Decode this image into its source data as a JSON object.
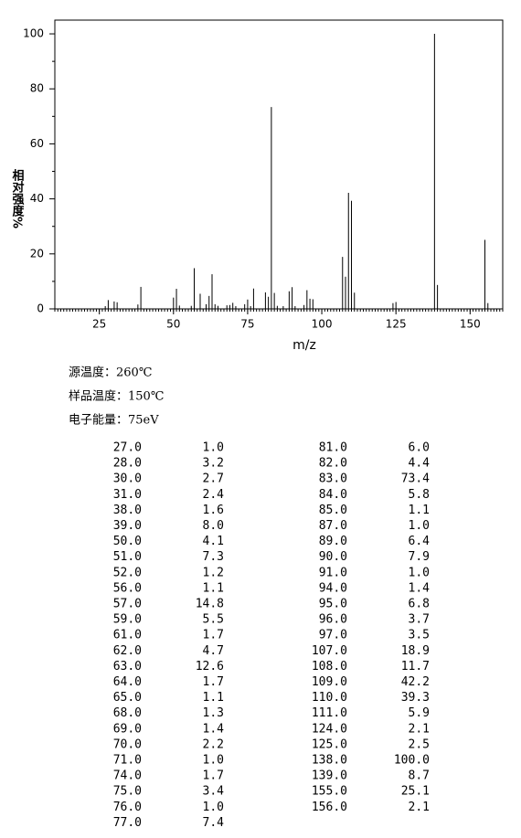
{
  "chart_data": {
    "type": "bar",
    "ylabel": "相对强度%",
    "xlabel": "m/z",
    "x": [
      27,
      28,
      30,
      31,
      38,
      39,
      50,
      51,
      52,
      56,
      57,
      59,
      61,
      62,
      63,
      64,
      65,
      68,
      69,
      70,
      71,
      74,
      75,
      76,
      77,
      81,
      82,
      83,
      84,
      85,
      87,
      89,
      90,
      91,
      94,
      95,
      96,
      97,
      107,
      108,
      109,
      110,
      111,
      124,
      125,
      138,
      139,
      155,
      156
    ],
    "values": [
      1.0,
      3.2,
      2.7,
      2.4,
      1.6,
      8.0,
      4.1,
      7.3,
      1.2,
      1.1,
      14.8,
      5.5,
      1.7,
      4.7,
      12.6,
      1.7,
      1.1,
      1.3,
      1.4,
      2.2,
      1.0,
      1.7,
      3.4,
      1.0,
      7.4,
      6.0,
      4.4,
      73.4,
      5.8,
      1.1,
      1.0,
      6.4,
      7.9,
      1.0,
      1.4,
      6.8,
      3.7,
      3.5,
      18.9,
      11.7,
      42.2,
      39.3,
      5.9,
      2.1,
      2.5,
      100.0,
      8.7,
      25.1,
      2.1
    ],
    "color": "#000000",
    "xlim": [
      10,
      161
    ],
    "ylim": [
      0,
      105
    ],
    "xticks": [
      25,
      50,
      75,
      100,
      125,
      150
    ],
    "yticks": [
      0,
      20,
      40,
      60,
      80,
      100
    ]
  },
  "conditions": [
    "源温度：260℃",
    "样品温度：150℃",
    "电子能量：75eV"
  ],
  "table": {
    "rows": [
      [
        "27.0",
        "1.0",
        "81.0",
        "6.0"
      ],
      [
        "28.0",
        "3.2",
        "82.0",
        "4.4"
      ],
      [
        "30.0",
        "2.7",
        "83.0",
        "73.4"
      ],
      [
        "31.0",
        "2.4",
        "84.0",
        "5.8"
      ],
      [
        "38.0",
        "1.6",
        "85.0",
        "1.1"
      ],
      [
        "39.0",
        "8.0",
        "87.0",
        "1.0"
      ],
      [
        "50.0",
        "4.1",
        "89.0",
        "6.4"
      ],
      [
        "51.0",
        "7.3",
        "90.0",
        "7.9"
      ],
      [
        "52.0",
        "1.2",
        "91.0",
        "1.0"
      ],
      [
        "56.0",
        "1.1",
        "94.0",
        "1.4"
      ],
      [
        "57.0",
        "14.8",
        "95.0",
        "6.8"
      ],
      [
        "59.0",
        "5.5",
        "96.0",
        "3.7"
      ],
      [
        "61.0",
        "1.7",
        "97.0",
        "3.5"
      ],
      [
        "62.0",
        "4.7",
        "107.0",
        "18.9"
      ],
      [
        "63.0",
        "12.6",
        "108.0",
        "11.7"
      ],
      [
        "64.0",
        "1.7",
        "109.0",
        "42.2"
      ],
      [
        "65.0",
        "1.1",
        "110.0",
        "39.3"
      ],
      [
        "68.0",
        "1.3",
        "111.0",
        "5.9"
      ],
      [
        "69.0",
        "1.4",
        "124.0",
        "2.1"
      ],
      [
        "70.0",
        "2.2",
        "125.0",
        "2.5"
      ],
      [
        "71.0",
        "1.0",
        "138.0",
        "100.0"
      ],
      [
        "74.0",
        "1.7",
        "139.0",
        "8.7"
      ],
      [
        "75.0",
        "3.4",
        "155.0",
        "25.1"
      ],
      [
        "76.0",
        "1.0",
        "156.0",
        "2.1"
      ],
      [
        "77.0",
        "7.4"
      ]
    ]
  }
}
